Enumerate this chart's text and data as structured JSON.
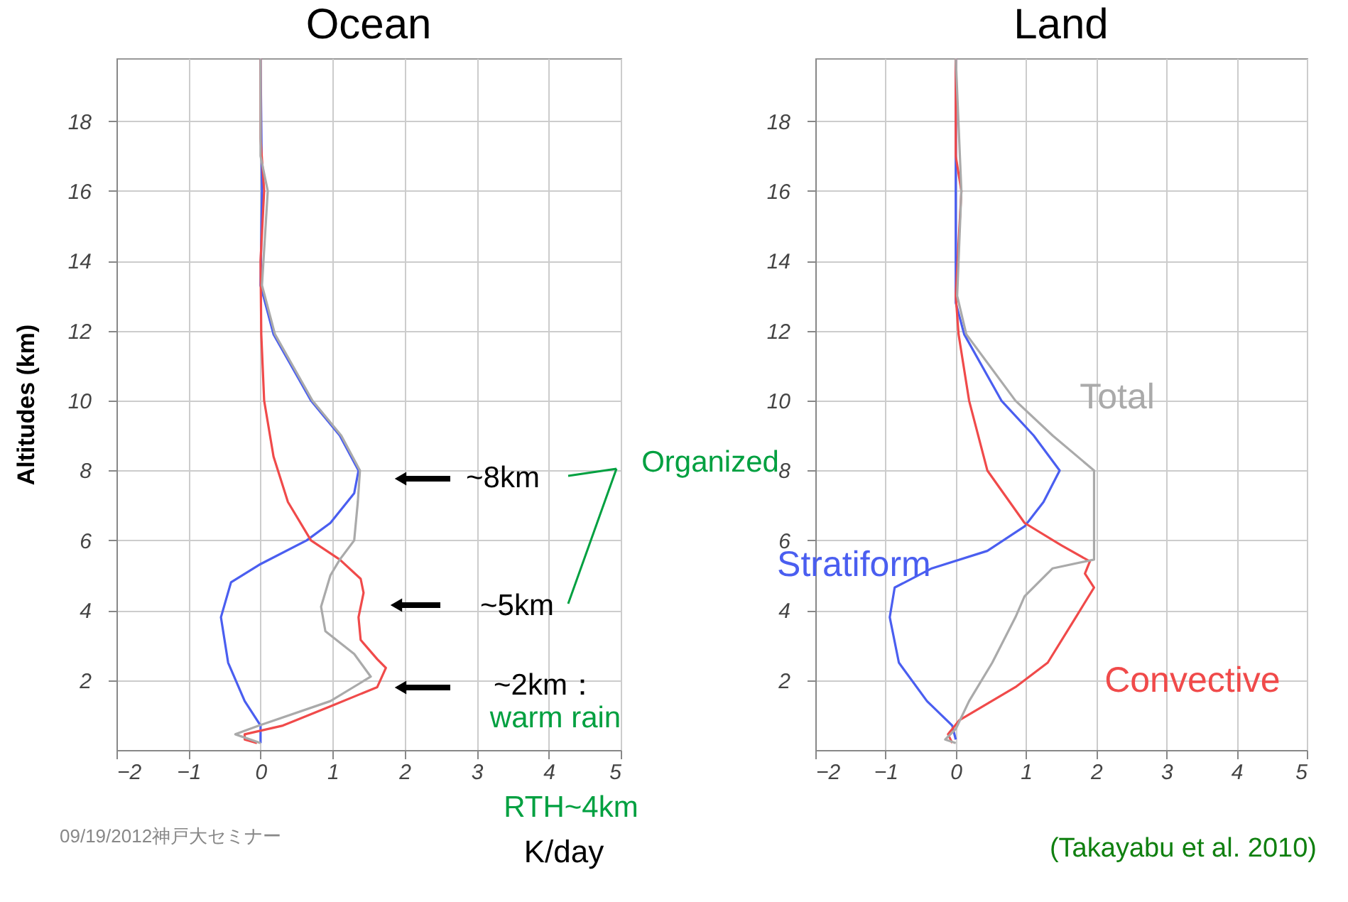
{
  "chart_data": [
    {
      "type": "line",
      "title": "Ocean",
      "xlabel": "K/day",
      "ylabel": "Altitudes (km)",
      "xlim": [
        -2,
        5
      ],
      "ylim": [
        0,
        19.8
      ],
      "xticks": [
        -2,
        -1,
        0,
        1,
        2,
        3,
        4,
        5
      ],
      "yticks": [
        2,
        4,
        6,
        8,
        10,
        12,
        14,
        16,
        18
      ],
      "grid": true,
      "legend": false,
      "marker": "none",
      "line_style": "solid",
      "series": [
        {
          "color": "#4a5ef0",
          "x": [
            0,
            0,
            -0.22,
            -0.45,
            -0.55,
            -0.41,
            -0.02,
            0.64,
            0.97,
            1.3,
            1.36,
            1.1,
            0.7,
            0.18,
            0,
            0.02,
            0
          ],
          "values": [
            0.2,
            0.7,
            1.4,
            2.5,
            3.8,
            4.8,
            5.3,
            6,
            6.5,
            7.35,
            8,
            9,
            10,
            11.9,
            13.3,
            16,
            19.8
          ]
        },
        {
          "color": "#f04a4a",
          "x": [
            -0.05,
            -0.22,
            -0.22,
            0.31,
            0.97,
            1.62,
            1.74,
            1.62,
            1.39,
            1.36,
            1.43,
            1.39,
            1.1,
            0.7,
            0.38,
            0.18,
            0.05,
            0.01,
            0,
            0.05,
            0,
            0
          ],
          "values": [
            0.2,
            0.3,
            0.45,
            0.7,
            1.25,
            1.8,
            2.35,
            2.6,
            3.15,
            3.8,
            4.5,
            4.9,
            5.45,
            6,
            7.1,
            8.4,
            10,
            11.9,
            14,
            16,
            17.5,
            19.8
          ]
        },
        {
          "color": "#aaaaaa",
          "x": [
            0,
            -0.35,
            -0.02,
            0.97,
            1.53,
            1.3,
            0.9,
            0.84,
            0.97,
            1.1,
            1.3,
            1.35,
            1.38,
            1.12,
            0.72,
            0.2,
            0.02,
            0.1,
            0,
            0
          ],
          "values": [
            0.2,
            0.45,
            0.7,
            1.4,
            2.1,
            2.75,
            3.4,
            4.1,
            5,
            5.45,
            6,
            7.1,
            8,
            9,
            10,
            11.9,
            13.3,
            16,
            17,
            19.8
          ]
        }
      ],
      "annotations": [
        "~8km",
        "~5km",
        "~2km：",
        "warm rain",
        "Organized",
        "RTH~4km",
        "09/19/2012神戸大セミナー"
      ]
    },
    {
      "type": "line",
      "title": "Land",
      "xlim": [
        -2,
        5
      ],
      "ylim": [
        0,
        19.8
      ],
      "xticks": [
        -2,
        -1,
        0,
        1,
        2,
        3,
        4,
        5
      ],
      "yticks": [
        2,
        4,
        6,
        8,
        10,
        12,
        14,
        16,
        18
      ],
      "grid": true,
      "legend": false,
      "marker": "none",
      "line_style": "solid",
      "series": [
        {
          "name": "Stratiform",
          "color": "#4a5ef0",
          "x": [
            0,
            -0.05,
            -0.41,
            -0.81,
            -0.94,
            -0.87,
            -0.34,
            0.45,
            0.98,
            1.25,
            1.48,
            1.11,
            0.65,
            0.12,
            0,
            0
          ],
          "values": [
            0.3,
            0.7,
            1.4,
            2.5,
            3.8,
            4.65,
            5.2,
            5.7,
            6.4,
            7.1,
            8,
            9,
            10,
            11.9,
            12.8,
            19.8
          ]
        },
        {
          "name": "Convective",
          "color": "#f04a4a",
          "x": [
            -0.05,
            -0.11,
            0.05,
            0.85,
            1.31,
            1.71,
            1.97,
            1.84,
            1.91,
            1.51,
            0.98,
            0.45,
            0.19,
            0.04,
            0,
            0.08,
            0,
            0
          ],
          "values": [
            0.2,
            0.45,
            0.85,
            1.8,
            2.5,
            3.8,
            4.65,
            5.05,
            5.4,
            5.85,
            6.5,
            8,
            10,
            11.9,
            13,
            16,
            17,
            19.8
          ]
        },
        {
          "name": "Total",
          "color": "#aaaaaa",
          "x": [
            0,
            -0.15,
            0,
            0.19,
            0.52,
            0.85,
            0.98,
            1.38,
            1.97,
            1.97,
            1.97,
            1.38,
            0.85,
            0.15,
            0.02,
            0.08,
            0
          ],
          "values": [
            0.2,
            0.3,
            0.6,
            1.4,
            2.5,
            3.8,
            4.4,
            5.2,
            5.45,
            6.5,
            8,
            9,
            10,
            11.9,
            13,
            16,
            19.8
          ]
        }
      ],
      "annotations": [
        "(Takayabu et al. 2010)"
      ]
    }
  ]
}
